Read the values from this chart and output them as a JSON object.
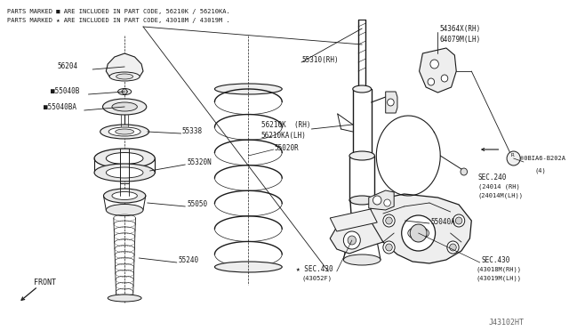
{
  "bg_color": "#ffffff",
  "line_color": "#1a1a1a",
  "text_color": "#1a1a1a",
  "title_text1": "PARTS MARKED ■ ARE INCLUDED IN PART CODE, 56210K / 56210KA.",
  "title_text2": "PARTS MARKED ★ ARE INCLUDED IN PART CODE, 43018M / 43019M .",
  "watermark": "J43102HT"
}
